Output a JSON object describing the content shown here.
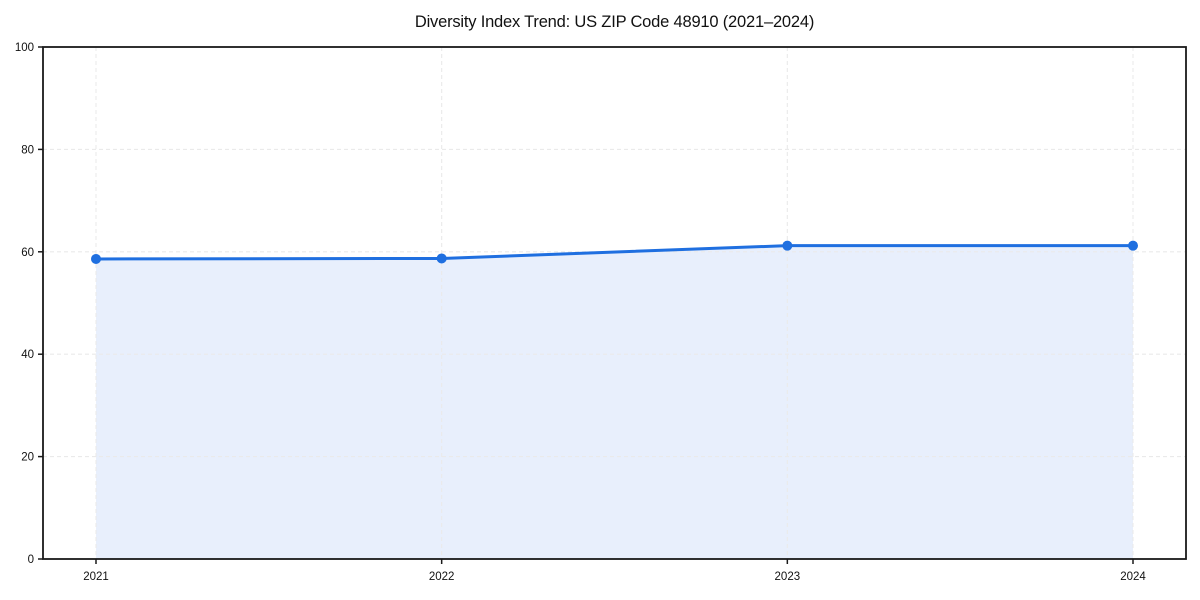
{
  "chart_data": {
    "type": "line",
    "title": "Diversity Index Trend: US ZIP Code 48910 (2021–2024)",
    "categories": [
      "2021",
      "2022",
      "2023",
      "2024"
    ],
    "series": [
      {
        "name": "Diversity Index",
        "values": [
          58.6,
          58.7,
          61.2,
          61.2
        ]
      }
    ],
    "xlabel": "",
    "ylabel": "",
    "ylim": [
      0,
      100
    ],
    "yticks": [
      0,
      20,
      40,
      60,
      80,
      100
    ],
    "grid": {
      "horizontal": true,
      "vertical": true,
      "style": "dashed"
    },
    "legend": "none",
    "area_fill": true,
    "marker": "circle",
    "colors": {
      "line": "#1f6fe0",
      "marker": "#1f6fe0",
      "area_fill": "#e8effc",
      "grid": "#eaeaea",
      "axis": "#1a1a1a",
      "tick_text": "#111111",
      "background": "#ffffff"
    }
  }
}
